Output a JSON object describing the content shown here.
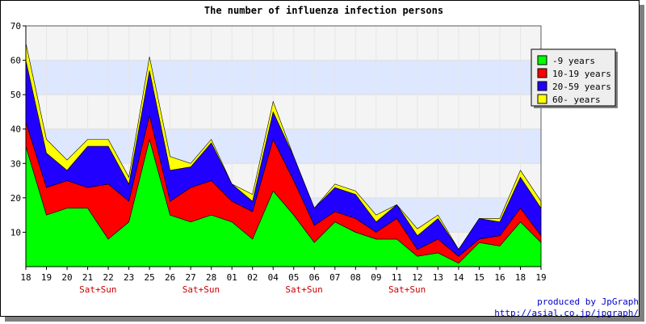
{
  "chart_data": {
    "type": "area",
    "stacked": true,
    "title": "The number of influenza infection persons",
    "xlabel": "",
    "ylabel": "",
    "ylim": [
      0,
      70
    ],
    "yticks": [
      10,
      20,
      30,
      40,
      50,
      60,
      70
    ],
    "categories": [
      "18",
      "19",
      "20",
      "21",
      "22",
      "23",
      "25",
      "26",
      "27",
      "28",
      "01",
      "02",
      "04",
      "05",
      "06",
      "07",
      "08",
      "09",
      "11",
      "12",
      "13",
      "14",
      "15",
      "16",
      "18",
      "19"
    ],
    "weekend_markers": [
      {
        "index": 3.5,
        "label": "Sat+Sun"
      },
      {
        "index": 8.5,
        "label": "Sat+Sun"
      },
      {
        "index": 13.5,
        "label": "Sat+Sun"
      },
      {
        "index": 18.5,
        "label": "Sat+Sun"
      }
    ],
    "series": [
      {
        "name": "-9 years",
        "color": "#00ff00",
        "values": [
          35,
          15,
          17,
          17,
          8,
          13,
          37,
          15,
          13,
          15,
          13,
          8,
          22,
          15,
          7,
          13,
          10,
          8,
          8,
          3,
          4,
          1,
          7,
          6,
          13,
          7
        ]
      },
      {
        "name": "10-19 years",
        "color": "#ff0000",
        "values": [
          7,
          8,
          8,
          6,
          16,
          6,
          7,
          4,
          10,
          10,
          6,
          8,
          15,
          10,
          5,
          3,
          4,
          2,
          6,
          2,
          4,
          2,
          1,
          3,
          4,
          2
        ]
      },
      {
        "name": "20-59 years",
        "color": "#2200ff",
        "values": [
          18,
          10,
          3,
          12,
          11,
          5,
          13,
          9,
          6,
          11,
          5,
          3,
          8,
          7,
          5,
          7,
          7,
          3,
          4,
          4,
          6,
          2,
          6,
          4,
          9,
          8
        ]
      },
      {
        "name": "60- years",
        "color": "#ffff00",
        "values": [
          5,
          4,
          3,
          2,
          2,
          2,
          4,
          4,
          1,
          1,
          0,
          2,
          3,
          0,
          0,
          1,
          1,
          2,
          0,
          2,
          1,
          0,
          0,
          1,
          2,
          2
        ]
      }
    ],
    "legend_position": "right",
    "grid": true,
    "band_colors": [
      "#f4f4f4",
      "#dde7ff"
    ]
  },
  "credits": {
    "line1": "produced by JpGraph",
    "line2": "http://asial.co.jp/jpgraph/"
  }
}
